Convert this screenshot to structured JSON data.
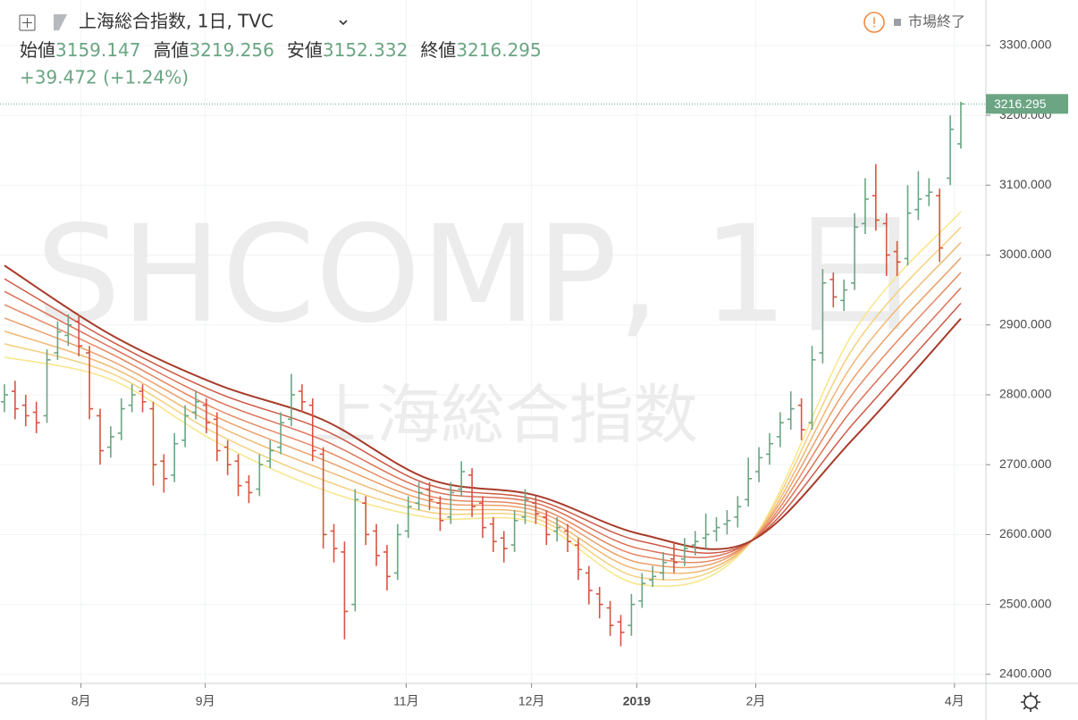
{
  "chart_data": {
    "type": "ohlc",
    "title": "上海総合指数, 1日, TVC",
    "status": "市場終了",
    "open_label": "始値",
    "high_label": "高値",
    "low_label": "安値",
    "close_label": "終値",
    "change": "+39.472 (+1.24%)",
    "watermark": "SHCOMP, 1日",
    "watermark_name": "上海総合指数",
    "up_color": "#6ba583",
    "down_color": "#d75442",
    "x": [
      0,
      1,
      2,
      3,
      4,
      5,
      6,
      7,
      8,
      9,
      10,
      11,
      12,
      13,
      14,
      15,
      16,
      17,
      18,
      19,
      20,
      21,
      22,
      23,
      24,
      25,
      26,
      27,
      28,
      29,
      30,
      31,
      32,
      33,
      34,
      35,
      36,
      37,
      38,
      39,
      40,
      41,
      42,
      43,
      44,
      45,
      46,
      47,
      48,
      49,
      50,
      51,
      52,
      53,
      54,
      55,
      56,
      57,
      58,
      59,
      60,
      61,
      62,
      63,
      64,
      65,
      66,
      67,
      68,
      69,
      70,
      71,
      72,
      73,
      74,
      75,
      76,
      77,
      78,
      79,
      80,
      81,
      82,
      83,
      84,
      85,
      86,
      87,
      88,
      89,
      90
    ],
    "open": [
      2790,
      2805,
      2785,
      2775,
      2770,
      2860,
      2885,
      2905,
      2860,
      2770,
      2725,
      2745,
      2785,
      2805,
      2780,
      2705,
      2685,
      2735,
      2775,
      2785,
      2765,
      2725,
      2705,
      2675,
      2665,
      2705,
      2725,
      2765,
      2805,
      2785,
      2715,
      2605,
      2575,
      2500,
      2645,
      2605,
      2575,
      2545,
      2605,
      2645,
      2665,
      2645,
      2625,
      2665,
      2685,
      2645,
      2615,
      2595,
      2585,
      2625,
      2645,
      2625,
      2605,
      2605,
      2585,
      2545,
      2515,
      2495,
      2475,
      2470,
      2505,
      2535,
      2545,
      2565,
      2565,
      2585,
      2595,
      2605,
      2615,
      2625,
      2650,
      2690,
      2715,
      2740,
      2765,
      2785,
      2760,
      2860,
      2965,
      2935,
      2960,
      3045,
      3085,
      3045,
      3005,
      2995,
      3065,
      3085,
      3085,
      3110,
      3159.147
    ],
    "high": [
      2815,
      2820,
      2800,
      2790,
      2865,
      2905,
      2915,
      2915,
      2870,
      2780,
      2755,
      2795,
      2815,
      2815,
      2790,
      2715,
      2745,
      2785,
      2805,
      2795,
      2775,
      2735,
      2715,
      2685,
      2715,
      2735,
      2775,
      2830,
      2815,
      2795,
      2725,
      2615,
      2590,
      2665,
      2655,
      2615,
      2585,
      2615,
      2655,
      2675,
      2675,
      2655,
      2675,
      2705,
      2695,
      2655,
      2625,
      2605,
      2635,
      2665,
      2655,
      2635,
      2625,
      2615,
      2595,
      2555,
      2525,
      2505,
      2485,
      2515,
      2545,
      2555,
      2575,
      2590,
      2595,
      2605,
      2630,
      2625,
      2635,
      2655,
      2710,
      2725,
      2745,
      2775,
      2805,
      2795,
      2870,
      2980,
      2975,
      2965,
      3060,
      3110,
      3130,
      3060,
      3020,
      3100,
      3120,
      3110,
      3095,
      3200,
      3219.256
    ],
    "low": [
      2775,
      2765,
      2755,
      2745,
      2760,
      2850,
      2870,
      2855,
      2765,
      2700,
      2710,
      2735,
      2775,
      2775,
      2670,
      2660,
      2675,
      2725,
      2765,
      2745,
      2705,
      2685,
      2655,
      2645,
      2655,
      2695,
      2715,
      2755,
      2775,
      2705,
      2580,
      2560,
      2450,
      2490,
      2585,
      2555,
      2520,
      2535,
      2595,
      2635,
      2635,
      2605,
      2615,
      2655,
      2625,
      2595,
      2575,
      2560,
      2575,
      2615,
      2615,
      2585,
      2590,
      2575,
      2535,
      2500,
      2480,
      2455,
      2440,
      2455,
      2495,
      2525,
      2535,
      2545,
      2555,
      2570,
      2580,
      2590,
      2600,
      2610,
      2640,
      2675,
      2700,
      2725,
      2750,
      2735,
      2750,
      2845,
      2925,
      2920,
      2950,
      3030,
      3035,
      2970,
      2970,
      2985,
      3050,
      3070,
      2990,
      3100,
      3152.332
    ],
    "close": [
      2800,
      2780,
      2770,
      2760,
      2850,
      2890,
      2900,
      2870,
      2780,
      2720,
      2740,
      2780,
      2800,
      2790,
      2700,
      2680,
      2730,
      2770,
      2790,
      2760,
      2720,
      2700,
      2670,
      2660,
      2700,
      2720,
      2760,
      2800,
      2790,
      2720,
      2600,
      2580,
      2490,
      2650,
      2600,
      2570,
      2540,
      2600,
      2640,
      2660,
      2650,
      2620,
      2660,
      2690,
      2640,
      2610,
      2590,
      2580,
      2620,
      2650,
      2630,
      2600,
      2610,
      2590,
      2550,
      2520,
      2500,
      2470,
      2460,
      2500,
      2530,
      2540,
      2560,
      2560,
      2580,
      2590,
      2600,
      2610,
      2620,
      2640,
      2680,
      2710,
      2730,
      2760,
      2780,
      2750,
      2850,
      2960,
      2940,
      2950,
      3040,
      3080,
      3050,
      3000,
      2990,
      3060,
      3080,
      3090,
      3010,
      3180,
      3216.295
    ],
    "ribbon": [
      {
        "color": "#f7e68a",
        "x": [
          0,
          10,
          20,
          30,
          40,
          50,
          60,
          70,
          80,
          90
        ],
        "values": [
          2854,
          2822,
          2732,
          2664,
          2624,
          2617,
          2528,
          2585,
          2892,
          3062
        ]
      },
      {
        "color": "#f4d07e",
        "x": [
          0,
          10,
          20,
          30,
          40,
          50,
          60,
          70,
          80,
          90
        ],
        "values": [
          2873,
          2831,
          2744,
          2678,
          2632,
          2623,
          2538,
          2586,
          2870,
          3040
        ]
      },
      {
        "color": "#f0b872",
        "x": [
          0,
          10,
          20,
          30,
          40,
          50,
          60,
          70,
          80,
          90
        ],
        "values": [
          2891,
          2840,
          2756,
          2693,
          2640,
          2628,
          2549,
          2586,
          2848,
          3018
        ]
      },
      {
        "color": "#ec9f69",
        "x": [
          0,
          10,
          20,
          30,
          40,
          50,
          60,
          70,
          80,
          90
        ],
        "values": [
          2910,
          2849,
          2768,
          2707,
          2648,
          2634,
          2559,
          2587,
          2826,
          2996
        ]
      },
      {
        "color": "#e68862",
        "x": [
          0,
          10,
          20,
          30,
          40,
          50,
          60,
          70,
          80,
          90
        ],
        "values": [
          2929,
          2859,
          2779,
          2721,
          2655,
          2639,
          2569,
          2587,
          2805,
          2975
        ]
      },
      {
        "color": "#dc7156",
        "x": [
          0,
          10,
          20,
          30,
          40,
          50,
          60,
          70,
          80,
          90
        ],
        "values": [
          2948,
          2868,
          2791,
          2735,
          2663,
          2645,
          2579,
          2588,
          2783,
          2953
        ]
      },
      {
        "color": "#cc5a46",
        "x": [
          0,
          10,
          20,
          30,
          40,
          50,
          60,
          70,
          80,
          90
        ],
        "values": [
          2966,
          2877,
          2803,
          2750,
          2671,
          2650,
          2590,
          2588,
          2761,
          2931
        ]
      },
      {
        "color": "#a83c2a",
        "x": [
          0,
          10,
          20,
          30,
          40,
          50,
          60,
          70,
          80,
          90
        ],
        "values": [
          2985,
          2886,
          2815,
          2764,
          2679,
          2656,
          2600,
          2589,
          2739,
          2909
        ]
      }
    ],
    "xlim": [
      -0.42,
      92.36
    ],
    "xticks": [
      {
        "value": 7.2,
        "label": "8月"
      },
      {
        "value": 18.9,
        "label": "9月"
      },
      {
        "value": 37.8,
        "label": "11月"
      },
      {
        "value": 49.6,
        "label": "12月"
      },
      {
        "value": 59.5,
        "label": "2019"
      },
      {
        "value": 70.7,
        "label": "2月"
      },
      {
        "value": 89.4,
        "label": "4月"
      }
    ],
    "ylim": [
      2387,
      3365
    ],
    "yticks": [
      {
        "value": 2400,
        "label": "2400.000"
      },
      {
        "value": 2500,
        "label": "2500.000"
      },
      {
        "value": 2600,
        "label": "2600.000"
      },
      {
        "value": 2700,
        "label": "2700.000"
      },
      {
        "value": 2800,
        "label": "2800.000"
      },
      {
        "value": 2900,
        "label": "2900.000"
      },
      {
        "value": 3000,
        "label": "3000.000"
      },
      {
        "value": 3100,
        "label": "3100.000"
      },
      {
        "value": 3200,
        "label": "3200.000"
      },
      {
        "value": 3300,
        "label": "3300.000"
      }
    ],
    "grid": true,
    "last_price_line": true
  }
}
